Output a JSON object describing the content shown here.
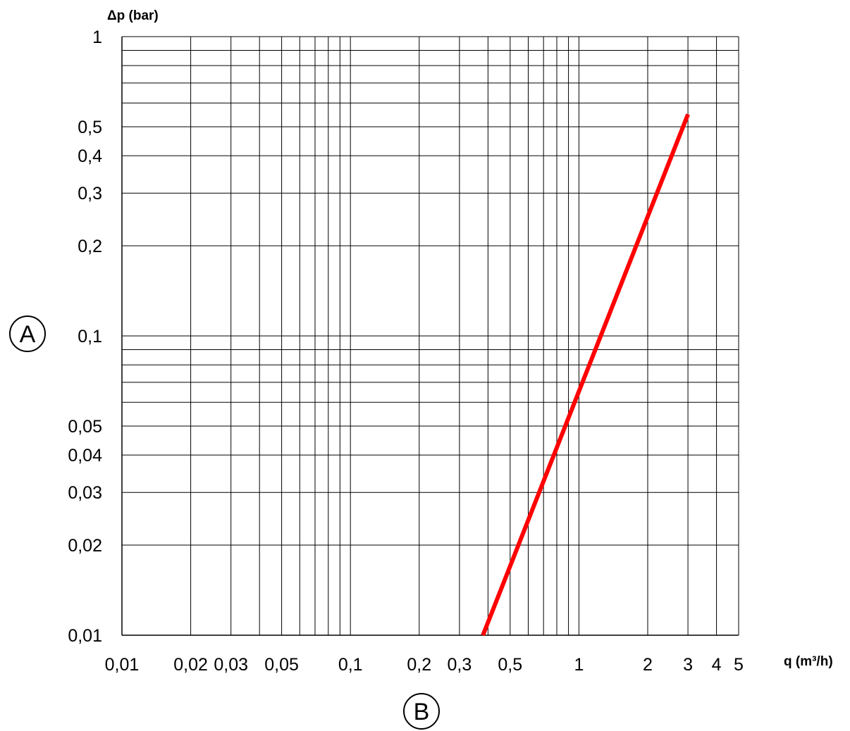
{
  "chart_data": {
    "type": "line",
    "title": "",
    "xlabel": "q (m³/h)",
    "ylabel": "Δp (bar)",
    "x_scale": "log",
    "y_scale": "log",
    "xlim": [
      0.01,
      5
    ],
    "ylim": [
      0.01,
      1
    ],
    "grid": true,
    "x_tick_labels": [
      {
        "value": 0.01,
        "label": "0,01"
      },
      {
        "value": 0.02,
        "label": "0,02"
      },
      {
        "value": 0.03,
        "label": "0,03"
      },
      {
        "value": 0.05,
        "label": "0,05"
      },
      {
        "value": 0.1,
        "label": "0,1"
      },
      {
        "value": 0.2,
        "label": "0,2"
      },
      {
        "value": 0.3,
        "label": "0,3"
      },
      {
        "value": 0.5,
        "label": "0,5"
      },
      {
        "value": 1,
        "label": "1"
      },
      {
        "value": 2,
        "label": "2"
      },
      {
        "value": 3,
        "label": "3"
      },
      {
        "value": 4,
        "label": "4"
      },
      {
        "value": 5,
        "label": "5"
      }
    ],
    "y_tick_labels": [
      {
        "value": 0.01,
        "label": "0,01"
      },
      {
        "value": 0.02,
        "label": "0,02"
      },
      {
        "value": 0.03,
        "label": "0,03"
      },
      {
        "value": 0.04,
        "label": "0,04"
      },
      {
        "value": 0.05,
        "label": "0,05"
      },
      {
        "value": 0.1,
        "label": "0,1"
      },
      {
        "value": 0.2,
        "label": "0,2"
      },
      {
        "value": 0.3,
        "label": "0,3"
      },
      {
        "value": 0.4,
        "label": "0,4"
      },
      {
        "value": 0.5,
        "label": "0,5"
      },
      {
        "value": 1,
        "label": "1"
      }
    ],
    "x_grid_values": [
      0.01,
      0.02,
      0.03,
      0.04,
      0.05,
      0.06,
      0.07,
      0.08,
      0.09,
      0.1,
      0.2,
      0.3,
      0.4,
      0.5,
      0.6,
      0.7,
      0.8,
      0.9,
      1,
      2,
      3,
      4,
      5
    ],
    "y_grid_values": [
      0.01,
      0.02,
      0.03,
      0.04,
      0.05,
      0.06,
      0.07,
      0.08,
      0.09,
      0.1,
      0.2,
      0.3,
      0.4,
      0.5,
      0.6,
      0.7,
      0.8,
      0.9,
      1
    ],
    "series": [
      {
        "color": "#ff0000",
        "points": [
          [
            0.38,
            0.01
          ],
          [
            3.0,
            0.55
          ]
        ]
      }
    ],
    "markers": {
      "y_axis": "A",
      "x_axis": "B"
    }
  }
}
